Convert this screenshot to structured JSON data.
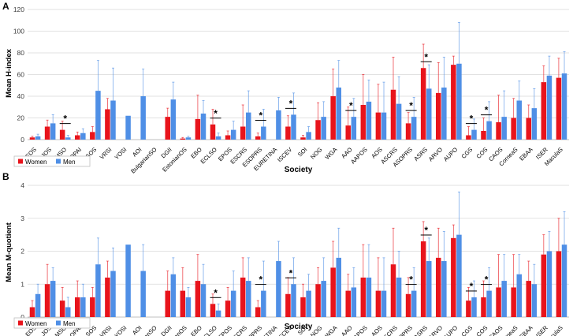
{
  "chart_data": [
    {
      "panel": "A",
      "type": "bar",
      "ylabel": "Mean H-index",
      "xlabel": "Society",
      "ylim": [
        0,
        120
      ],
      "yticks": [
        0,
        20,
        40,
        60,
        80,
        100,
        120
      ],
      "legend": {
        "position": "bottom-left",
        "entries": [
          "Women",
          "Men"
        ]
      },
      "categories": [
        "EOS",
        "JOS",
        "MSO",
        "OPAI",
        "SOS",
        "VRSI",
        "YOSI",
        "AOI",
        "BulgarianSO",
        "DGII",
        "EstonianOS",
        "EBO",
        "ECLSO",
        "EPOS",
        "ESCRS",
        "ESOPRS",
        "EURETINA",
        "ISCEV",
        "SOI",
        "NOG",
        "WGA",
        "AAO",
        "AAPOS",
        "AOS",
        "ASCRS",
        "ASOPRS",
        "ASRS",
        "ARVO",
        "AUPO",
        "CGS",
        "COS",
        "CAOS",
        "CorneaS",
        "EBAA",
        "ISER",
        "MaculaS"
      ],
      "series": [
        {
          "name": "Women",
          "color": "#e8141c",
          "values": [
            2,
            12,
            9,
            4,
            7,
            28,
            null,
            null,
            null,
            21,
            1,
            19,
            14,
            4,
            12,
            3,
            null,
            12,
            2,
            18,
            40,
            13,
            32,
            25,
            46,
            15,
            66,
            43,
            69,
            4,
            8,
            16,
            20,
            20,
            53,
            57
          ],
          "errors": [
            1,
            6,
            8,
            3,
            5,
            10,
            null,
            null,
            null,
            8,
            1,
            22,
            14,
            4,
            20,
            3,
            null,
            10,
            2,
            16,
            25,
            17,
            28,
            26,
            30,
            10,
            22,
            28,
            8,
            8,
            12,
            25,
            18,
            12,
            15,
            18
          ]
        },
        {
          "name": "Men",
          "color": "#4f8fe6",
          "values": [
            3,
            15,
            2,
            6,
            45,
            36,
            22,
            40,
            null,
            37,
            2,
            24,
            3,
            9,
            25,
            12,
            27,
            23,
            7,
            21,
            48,
            21,
            35,
            25,
            33,
            21,
            47,
            48,
            70,
            9,
            17,
            21,
            36,
            29,
            59,
            61
          ],
          "errors": [
            2,
            8,
            2,
            4,
            28,
            30,
            0,
            25,
            null,
            16,
            1,
            12,
            3,
            8,
            20,
            16,
            12,
            20,
            5,
            14,
            25,
            17,
            20,
            28,
            25,
            18,
            22,
            28,
            38,
            10,
            18,
            24,
            18,
            18,
            18,
            20
          ]
        }
      ],
      "significant": [
        "MSO",
        "ECLSO",
        "ESOPRS",
        "ISCEV",
        "AAO",
        "ASOPRS",
        "ASRS",
        "CGS",
        "COS"
      ],
      "significance_marker": "*"
    },
    {
      "panel": "B",
      "type": "bar",
      "ylabel": "Mean M-quotient",
      "xlabel": "Society",
      "ylim": [
        0,
        4
      ],
      "yticks": [
        0,
        1,
        2,
        3,
        4
      ],
      "legend": {
        "position": "bottom-left",
        "entries": [
          "Women",
          "Men"
        ]
      },
      "categories": [
        "EOS",
        "JOS",
        "MSO",
        "OPAI",
        "SOS",
        "VRSI",
        "YOSI",
        "AOI",
        "BulgarianSO",
        "DGII",
        "EstonianOS",
        "EBO",
        "ECLSO",
        "EPOS",
        "ESCRS",
        "ESOPRS",
        "EURETINA",
        "ISCEV",
        "SOI",
        "NOG",
        "WGA",
        "AAO",
        "AAPOS",
        "AOS",
        "ASCRS",
        "ASOPRS",
        "ASRS",
        "ARVO",
        "AUPO",
        "CGS",
        "COS",
        "CAOS",
        "CorneaS",
        "EBAA",
        "ISER",
        "MaculaS"
      ],
      "series": [
        {
          "name": "Women",
          "color": "#e8141c",
          "values": [
            0.3,
            1.0,
            0.5,
            0.6,
            0.6,
            1.2,
            null,
            null,
            null,
            0.8,
            0.8,
            1.1,
            0.4,
            0.5,
            1.2,
            0.3,
            null,
            0.7,
            0.6,
            1.0,
            1.5,
            0.8,
            1.2,
            0.8,
            1.6,
            0.7,
            2.3,
            1.8,
            2.4,
            0.5,
            0.6,
            0.9,
            0.9,
            1.1,
            1.9,
            2.0
          ],
          "errors": [
            0.2,
            0.6,
            0.4,
            0.5,
            0.3,
            0.5,
            null,
            null,
            null,
            0.6,
            0.7,
            0.8,
            0.3,
            0.4,
            0.6,
            0.2,
            null,
            0.5,
            0.4,
            0.5,
            0.8,
            0.5,
            1.0,
            1.0,
            1.1,
            0.5,
            0.6,
            0.9,
            0.4,
            0.4,
            0.5,
            1.0,
            1.0,
            0.6,
            0.6,
            1.0
          ]
        },
        {
          "name": "Men",
          "color": "#4f8fe6",
          "values": [
            0.7,
            1.1,
            0.3,
            0.6,
            1.6,
            1.4,
            2.2,
            1.4,
            null,
            1.3,
            0.6,
            1.0,
            0.2,
            0.8,
            1.1,
            0.8,
            1.7,
            1.0,
            0.8,
            1.1,
            1.8,
            0.9,
            1.2,
            0.8,
            1.2,
            0.8,
            1.7,
            1.7,
            2.5,
            0.6,
            0.8,
            1.1,
            1.3,
            1.0,
            2.0,
            2.2
          ],
          "errors": [
            0.3,
            0.4,
            0.3,
            0.4,
            0.8,
            0.7,
            0.0,
            0.8,
            null,
            0.5,
            0.3,
            0.6,
            0.2,
            0.6,
            0.7,
            0.9,
            0.6,
            0.8,
            0.5,
            0.7,
            0.9,
            0.6,
            1.0,
            1.0,
            0.8,
            0.7,
            0.7,
            0.9,
            1.3,
            0.5,
            0.7,
            0.8,
            0.6,
            0.6,
            0.6,
            1.0
          ]
        }
      ],
      "significant": [
        "ECLSO",
        "ESOPRS",
        "ISCEV",
        "ASOPRS",
        "ASRS",
        "CGS",
        "COS"
      ],
      "significance_marker": "*"
    }
  ]
}
